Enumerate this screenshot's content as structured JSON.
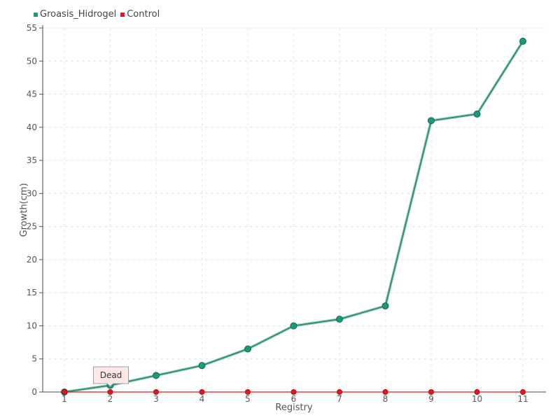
{
  "chart_data": {
    "type": "line",
    "xlabel": "Registry",
    "ylabel": "Growth(cm)",
    "categories": [
      "1",
      "2",
      "3",
      "4",
      "5",
      "6",
      "7",
      "8",
      "9",
      "10",
      "11"
    ],
    "ylim": [
      0,
      55
    ],
    "yticks": [
      0,
      5,
      10,
      15,
      20,
      25,
      30,
      35,
      40,
      45,
      50,
      55
    ],
    "grid": true,
    "legend_position": "top-left",
    "series": [
      {
        "name": "Groasis_Hidrogel",
        "color": "#1a9a7a",
        "values": [
          0,
          1,
          2.5,
          4,
          6.5,
          10,
          11,
          13,
          41,
          42,
          53
        ]
      },
      {
        "name": "Control",
        "color": "#e8141e",
        "values": [
          0,
          0,
          0,
          0,
          0,
          0,
          0,
          0,
          0,
          0,
          0
        ]
      }
    ],
    "annotation": {
      "text": "Dead",
      "category": "2",
      "series": "Control"
    }
  }
}
